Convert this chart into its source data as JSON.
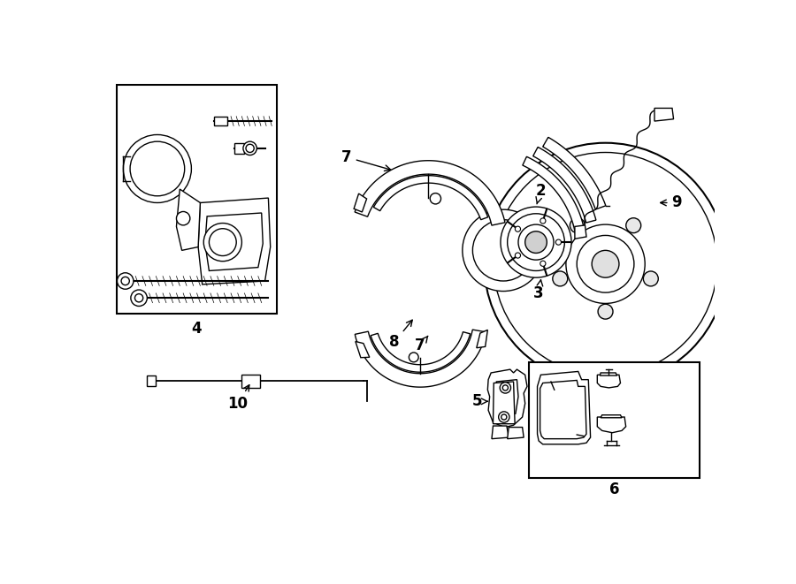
{
  "bg_color": "#ffffff",
  "line_color": "#000000",
  "fig_width": 9.0,
  "fig_height": 6.61,
  "dpi": 100,
  "image_b64": ""
}
